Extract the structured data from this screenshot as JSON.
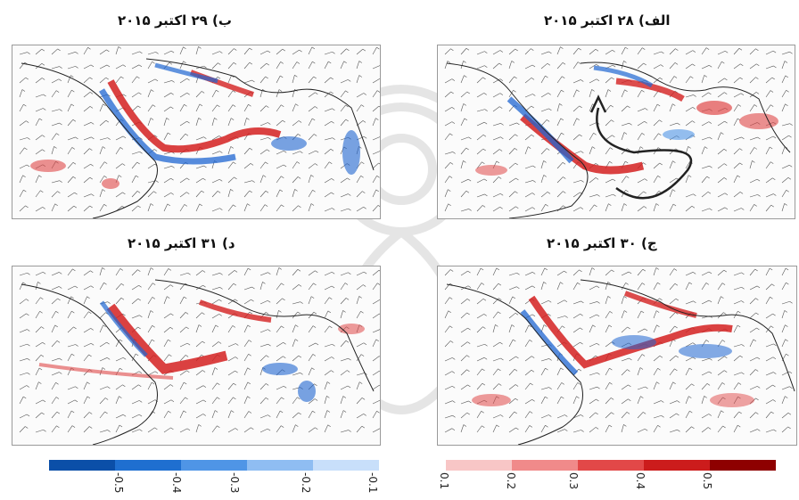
{
  "panels": [
    {
      "id": "a",
      "title": "الف) ۲۸ اکتبر ۲۰۱۵"
    },
    {
      "id": "b",
      "title": "ب) ۲۹ اکتبر ۲۰۱۵"
    },
    {
      "id": "c",
      "title": "ج) ۳۰ اکتبر ۲۰۱۵"
    },
    {
      "id": "d",
      "title": "د) ۳۱ اکتبر ۲۰۱۵"
    }
  ],
  "colorbar": {
    "negative": {
      "labels": [
        "-0.5",
        "-0.4",
        "-0.3",
        "-0.2",
        "-0.1"
      ],
      "colors": [
        "#0b4fa8",
        "#1f6fd0",
        "#4f95e6",
        "#8fbdf2",
        "#c8dffa"
      ]
    },
    "positive": {
      "labels": [
        "0.1",
        "0.2",
        "0.3",
        "0.4",
        "0.5"
      ],
      "colors": [
        "#f8c6c6",
        "#f08a8a",
        "#e24848",
        "#cc1c1c",
        "#8e0000"
      ]
    }
  },
  "colors": {
    "red_band": "#d42020",
    "blue_band": "#1f66d1",
    "coast": "#222222",
    "barb": "#555555"
  }
}
